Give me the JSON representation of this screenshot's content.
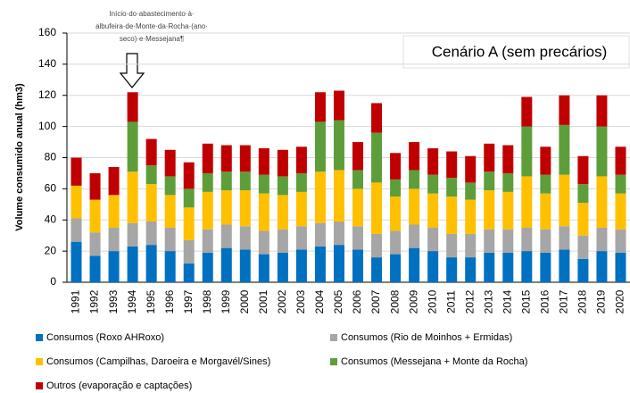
{
  "chart_data": {
    "type": "stacked_bar",
    "title": "Cenário A (sem precários)",
    "y_label": "Volume consumido anual (hm3)",
    "annotation": [
      "Início·do·abastecimento·à·",
      "albufeira·de·Monte·da·Rocha·(ano·",
      "seco)·e·Messejana¶"
    ],
    "categories": [
      "1991",
      "1992",
      "1993",
      "1994",
      "1995",
      "1996",
      "1997",
      "1998",
      "1999",
      "2000",
      "2001",
      "2002",
      "2003",
      "2004",
      "2005",
      "2006",
      "2007",
      "2008",
      "2009",
      "2010",
      "2011",
      "2012",
      "2013",
      "2014",
      "2015",
      "2016",
      "2017",
      "2018",
      "2019",
      "2020"
    ],
    "series": [
      {
        "name": "Consumos (Roxo AHRoxo)",
        "color": "#0070c0",
        "values": [
          26,
          17,
          20,
          23,
          24,
          20,
          12,
          19,
          22,
          21,
          18,
          19,
          21,
          23,
          24,
          21,
          16,
          18,
          22,
          20,
          16,
          16,
          19,
          19,
          20,
          19,
          21,
          15,
          20,
          19
        ]
      },
      {
        "name": "Consumos (Rio de Moinhos + Ermidas)",
        "color": "#a6a6a6",
        "values": [
          15,
          15,
          15,
          15,
          15,
          15,
          15,
          15,
          15,
          15,
          15,
          15,
          15,
          15,
          15,
          15,
          15,
          15,
          15,
          15,
          15,
          15,
          15,
          15,
          15,
          15,
          15,
          15,
          15,
          15
        ]
      },
      {
        "name": "Consumos (Campilhas, Daroeira e Morgavél/Sines)",
        "color": "#ffc000",
        "values": [
          21,
          21,
          21,
          33,
          24,
          21,
          21,
          24,
          22,
          23,
          24,
          22,
          22,
          33,
          33,
          24,
          33,
          22,
          23,
          22,
          24,
          22,
          25,
          24,
          33,
          23,
          33,
          21,
          33,
          23
        ]
      },
      {
        "name": "Consumos (Messejana + Monte da Rocha)",
        "color": "#5e9e3a",
        "values": [
          0,
          0,
          0,
          32,
          12,
          12,
          12,
          12,
          12,
          12,
          12,
          12,
          12,
          32,
          32,
          12,
          32,
          11,
          12,
          12,
          12,
          11,
          12,
          12,
          32,
          12,
          32,
          12,
          32,
          12
        ]
      },
      {
        "name": "Outros (evaporação e captações)",
        "color": "#c00000",
        "values": [
          18,
          17,
          18,
          19,
          17,
          17,
          17,
          19,
          17,
          17,
          17,
          17,
          17,
          19,
          19,
          18,
          19,
          17,
          18,
          17,
          17,
          17,
          18,
          18,
          19,
          18,
          19,
          18,
          20,
          18
        ]
      }
    ],
    "ylim": [
      0,
      160
    ],
    "yticks": [
      0,
      20,
      40,
      60,
      80,
      100,
      120,
      140,
      160
    ],
    "grid": true
  }
}
